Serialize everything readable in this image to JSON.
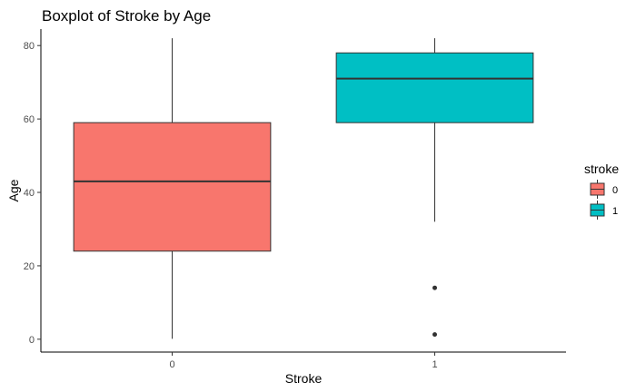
{
  "chart_data": {
    "type": "boxplot",
    "title": "Boxplot of Stroke by Age",
    "xlabel": "Stroke",
    "ylabel": "Age",
    "categories": [
      "0",
      "1"
    ],
    "ylim": [
      -3.5,
      84.5
    ],
    "yticks": [
      0,
      20,
      40,
      60,
      80
    ],
    "grid": false,
    "legend": {
      "title": "stroke",
      "placement": "right",
      "entries": [
        {
          "label": "0",
          "color": "#F8766D"
        },
        {
          "label": "1",
          "color": "#00BFC4"
        }
      ]
    },
    "boxes": [
      {
        "category": "0",
        "min": 0.1,
        "q1": 24,
        "median": 43,
        "q3": 59,
        "max": 82,
        "outliers": [],
        "color": "#F8766D"
      },
      {
        "category": "1",
        "min": 32,
        "q1": 59,
        "median": 71,
        "q3": 78,
        "max": 82,
        "outliers": [
          14,
          1.3
        ],
        "color": "#00BFC4"
      }
    ]
  }
}
